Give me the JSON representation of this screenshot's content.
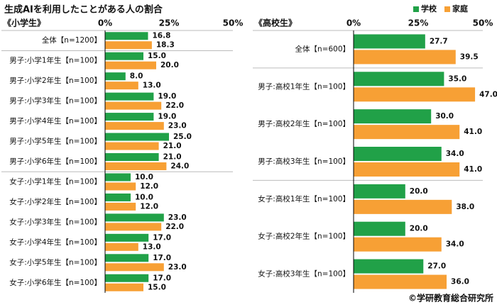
{
  "title": "生成AIを利用したことがある人の割合",
  "source": "©学研教育総合研究所",
  "chart_data": [
    {
      "type": "bar",
      "orientation": "horizontal",
      "subtitle": "《小学生》",
      "categories": [
        "全体【n=1200】",
        "男子:小学1年生【n=100】",
        "男子:小学2年生【n=100】",
        "男子:小学3年生【n=100】",
        "男子:小学4年生【n=100】",
        "男子:小学5年生【n=100】",
        "男子:小学6年生【n=100】",
        "女子:小学1年生【n=100】",
        "女子:小学2年生【n=100】",
        "女子:小学3年生【n=100】",
        "女子:小学4年生【n=100】",
        "女子:小学5年生【n=100】",
        "女子:小学6年生【n=100】"
      ],
      "series": [
        {
          "color": "#21a148",
          "values": [
            16.8,
            15,
            8,
            19,
            19,
            25,
            21,
            10,
            10,
            23,
            17,
            17,
            17
          ],
          "value_labels": [
            "16.8",
            "15.0",
            "8.0",
            "19.0",
            "19.0",
            "25.0",
            "21.0",
            "10.0",
            "10.0",
            "23.0",
            "17.0",
            "17.0",
            "17.0"
          ]
        },
        {
          "color": "#f7a035",
          "values": [
            18.3,
            20,
            13,
            22,
            23,
            21,
            24,
            12,
            12,
            22,
            13,
            23,
            15
          ],
          "value_labels": [
            "18.3",
            "20.0",
            "13.0",
            "22.0",
            "23.0",
            "21.0",
            "24.0",
            "12.0",
            "12.0",
            "22.0",
            "13.0",
            "23.0",
            "15.0"
          ]
        }
      ],
      "xlim": [
        0,
        50
      ],
      "xticks": [
        {
          "value": 0,
          "label": "0%"
        },
        {
          "value": 25,
          "label": "25%"
        },
        {
          "value": 50,
          "label": "50%"
        }
      ]
    },
    {
      "type": "bar",
      "orientation": "horizontal",
      "subtitle": "《高校生》",
      "categories": [
        "全体【n=600】",
        "男子:高校1年生【n=100】",
        "男子:高校2年生【n=100】",
        "男子:高校3年生【n=100】",
        "女子:高校1年生【n=100】",
        "女子:高校2年生【n=100】",
        "女子:高校3年生【n=100】"
      ],
      "series": [
        {
          "name": "学校",
          "color": "#21a148",
          "values": [
            27.7,
            35,
            30,
            34,
            20,
            20,
            27
          ],
          "value_labels": [
            "27.7",
            "35.0",
            "30.0",
            "34.0",
            "20.0",
            "20.0",
            "27.0"
          ]
        },
        {
          "name": "家庭",
          "color": "#f7a035",
          "values": [
            39.5,
            47,
            41,
            41,
            38,
            34,
            36
          ],
          "value_labels": [
            "39.5",
            "47.0",
            "41.0",
            "41.0",
            "38.0",
            "34.0",
            "36.0"
          ]
        }
      ],
      "xlim": [
        0,
        50
      ],
      "xticks": [
        {
          "value": 0,
          "label": "0%"
        },
        {
          "value": 25,
          "label": "25%"
        },
        {
          "value": 50,
          "label": "50%"
        }
      ],
      "legend": "top-right"
    }
  ]
}
